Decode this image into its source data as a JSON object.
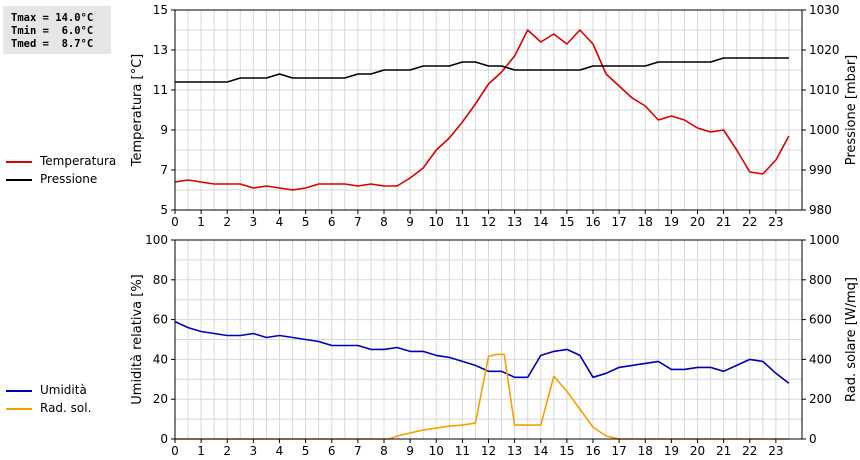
{
  "stats": {
    "tmax": "Tmax = 14.0°C",
    "tmin": "Tmin =  6.0°C",
    "tmed": "Tmed =  8.7°C"
  },
  "legend_top": [
    {
      "label": "Temperatura",
      "color": "#dd0000"
    },
    {
      "label": "Pressione",
      "color": "#000000"
    }
  ],
  "legend_bottom": [
    {
      "label": "Umidità",
      "color": "#0000bb"
    },
    {
      "label": "Rad. sol.",
      "color": "#f5a000"
    }
  ],
  "chart_data": [
    {
      "type": "line",
      "ylabel_left": "Temperatura [°C]",
      "ylabel_right": "Pressione [mbar]",
      "xlim": [
        0,
        24
      ],
      "ylim_left": [
        5,
        15
      ],
      "ylim_right": [
        980,
        1030
      ],
      "yticks_left": [
        5,
        7,
        9,
        11,
        13,
        15
      ],
      "yticks_right": [
        980,
        990,
        1000,
        1010,
        1020,
        1030
      ],
      "xticks": [
        0,
        1,
        2,
        3,
        4,
        5,
        6,
        7,
        8,
        9,
        10,
        11,
        12,
        13,
        14,
        15,
        16,
        17,
        18,
        19,
        20,
        21,
        22,
        23
      ],
      "grid": true,
      "series": [
        {
          "name": "Temperatura",
          "axis": "left",
          "color": "#dd0000",
          "x": [
            0,
            0.5,
            1,
            1.5,
            2,
            2.5,
            3,
            3.5,
            4,
            4.5,
            5,
            5.5,
            6,
            6.5,
            7,
            7.5,
            8,
            8.5,
            9,
            9.5,
            10,
            10.5,
            11,
            11.5,
            12,
            12.5,
            13,
            13.5,
            14,
            14.5,
            15,
            15.5,
            16,
            16.5,
            17,
            17.5,
            18,
            18.5,
            19,
            19.5,
            20,
            20.5,
            21,
            21.5,
            22,
            22.5,
            23,
            23.5
          ],
          "values": [
            6.4,
            6.5,
            6.4,
            6.3,
            6.3,
            6.3,
            6.1,
            6.2,
            6.1,
            6.0,
            6.1,
            6.3,
            6.3,
            6.3,
            6.2,
            6.3,
            6.2,
            6.2,
            6.6,
            7.1,
            8.0,
            8.6,
            9.4,
            10.3,
            11.3,
            11.9,
            12.7,
            14.0,
            13.4,
            13.8,
            13.3,
            14.0,
            13.3,
            11.8,
            11.2,
            10.6,
            10.2,
            9.5,
            9.7,
            9.5,
            9.1,
            8.9,
            9.0,
            8.0,
            6.9,
            6.8,
            7.5,
            8.7
          ]
        },
        {
          "name": "Pressione",
          "axis": "right",
          "color": "#000000",
          "x": [
            0,
            0.5,
            1,
            1.5,
            2,
            2.5,
            3,
            3.5,
            4,
            4.5,
            5,
            5.5,
            6,
            6.5,
            7,
            7.5,
            8,
            8.5,
            9,
            9.5,
            10,
            10.5,
            11,
            11.5,
            12,
            12.5,
            13,
            13.5,
            14,
            14.5,
            15,
            15.5,
            16,
            16.5,
            17,
            17.5,
            18,
            18.5,
            19,
            19.5,
            20,
            20.5,
            21,
            21.5,
            22,
            22.5,
            23,
            23.5
          ],
          "values": [
            1012,
            1012,
            1012,
            1012,
            1012,
            1013,
            1013,
            1013,
            1014,
            1013,
            1013,
            1013,
            1013,
            1013,
            1014,
            1014,
            1015,
            1015,
            1015,
            1016,
            1016,
            1016,
            1017,
            1017,
            1016,
            1016,
            1015,
            1015,
            1015,
            1015,
            1015,
            1015,
            1016,
            1016,
            1016,
            1016,
            1016,
            1017,
            1017,
            1017,
            1017,
            1017,
            1018,
            1018,
            1018,
            1018,
            1018,
            1018
          ]
        }
      ]
    },
    {
      "type": "line",
      "ylabel_left": "Umidità relativa [%]",
      "ylabel_right": "Rad. solare [W/mq]",
      "xlim": [
        0,
        24
      ],
      "ylim_left": [
        0,
        100
      ],
      "ylim_right": [
        0,
        1000
      ],
      "yticks_left": [
        0,
        20,
        40,
        60,
        80,
        100
      ],
      "yticks_right": [
        0,
        200,
        400,
        600,
        800,
        1000
      ],
      "xticks": [
        0,
        1,
        2,
        3,
        4,
        5,
        6,
        7,
        8,
        9,
        10,
        11,
        12,
        13,
        14,
        15,
        16,
        17,
        18,
        19,
        20,
        21,
        22,
        23
      ],
      "grid": true,
      "series": [
        {
          "name": "Umidità",
          "axis": "left",
          "color": "#0000bb",
          "x": [
            0,
            0.5,
            1,
            1.5,
            2,
            2.5,
            3,
            3.5,
            4,
            4.5,
            5,
            5.5,
            6,
            6.5,
            7,
            7.5,
            8,
            8.5,
            9,
            9.5,
            10,
            10.5,
            11,
            11.5,
            12,
            12.5,
            13,
            13.5,
            14,
            14.5,
            15,
            15.5,
            16,
            16.5,
            17,
            17.5,
            18,
            18.5,
            19,
            19.5,
            20,
            20.5,
            21,
            21.5,
            22,
            22.5,
            23,
            23.5
          ],
          "values": [
            59,
            56,
            54,
            53,
            52,
            52,
            53,
            51,
            52,
            51,
            50,
            49,
            47,
            47,
            47,
            45,
            45,
            46,
            44,
            44,
            42,
            41,
            39,
            37,
            34,
            34,
            31,
            31,
            42,
            44,
            45,
            42,
            31,
            33,
            36,
            37,
            38,
            39,
            35,
            35,
            36,
            36,
            34,
            37,
            40,
            39,
            33,
            28
          ]
        },
        {
          "name": "Rad. sol.",
          "axis": "right",
          "color": "#f5a000",
          "x": [
            0,
            1,
            2,
            3,
            4,
            5,
            6,
            7,
            8,
            8.2,
            8.5,
            9,
            9.5,
            10,
            10.5,
            11,
            11.5,
            12,
            12.3,
            12.6,
            13,
            13.5,
            14,
            14.5,
            15,
            15.5,
            16,
            16.5,
            17,
            18,
            19,
            20,
            21,
            22,
            23,
            23.5
          ],
          "values": [
            0,
            0,
            0,
            0,
            0,
            0,
            0,
            0,
            0,
            0,
            15,
            30,
            45,
            55,
            65,
            70,
            80,
            415,
            425,
            425,
            70,
            70,
            70,
            315,
            240,
            150,
            60,
            15,
            0,
            0,
            0,
            0,
            0,
            0,
            0,
            0
          ]
        }
      ]
    }
  ]
}
